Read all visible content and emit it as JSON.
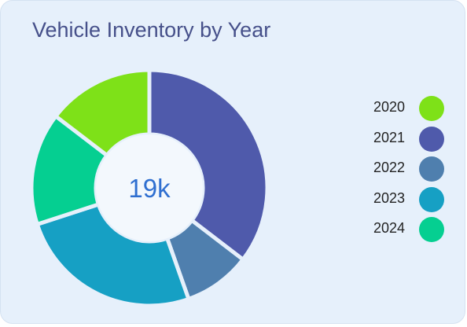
{
  "chart_data": {
    "type": "pie",
    "title": "Vehicle Inventory by Year",
    "center_label": "19k",
    "categories": [
      "2021",
      "2022",
      "2023",
      "2024",
      "2020"
    ],
    "values": [
      35.4,
      9.2,
      25.4,
      15.4,
      14.6
    ],
    "colors": [
      "#4f5aab",
      "#4f7fae",
      "#16a0c4",
      "#05cf91",
      "#7ee118"
    ],
    "legend": [
      {
        "label": "2020",
        "color": "#7ee118"
      },
      {
        "label": "2021",
        "color": "#4f5aab"
      },
      {
        "label": "2022",
        "color": "#4f7fae"
      },
      {
        "label": "2023",
        "color": "#16a0c4"
      },
      {
        "label": "2024",
        "color": "#05cf91"
      }
    ],
    "legend_position": "right"
  }
}
